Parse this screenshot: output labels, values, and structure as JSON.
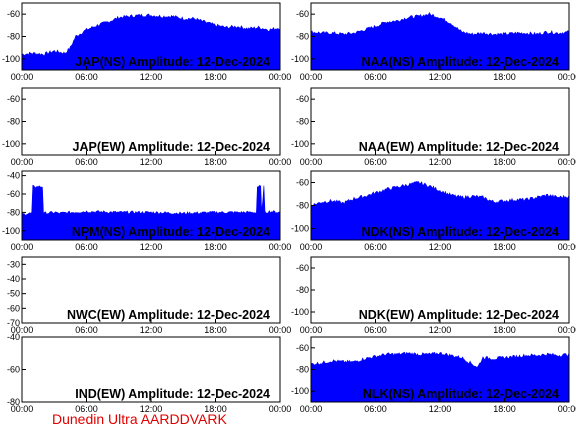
{
  "credit": "Dunedin Ultra AARDDVARK",
  "colors": {
    "fill": "#0000ff",
    "credit": "#e00000",
    "frame": "#000000"
  },
  "chart_data": [
    {
      "type": "area",
      "title": "JAP(NS) Amplitude: 12-Dec-2024",
      "x_tick_labels": [
        "00:00",
        "06:00",
        "12:00",
        "18:00",
        "00:00"
      ],
      "y_ticks": [
        -60,
        -80,
        -100
      ],
      "ylim": [
        -110,
        -50
      ],
      "x_hours": [
        0,
        1,
        2,
        3,
        4,
        4.5,
        5,
        6,
        7,
        8,
        9,
        10,
        11,
        12,
        13,
        14,
        15,
        16,
        17,
        18,
        19,
        20,
        21,
        22,
        23,
        24
      ],
      "y_values": [
        -96,
        -95,
        -96,
        -93,
        -95,
        -90,
        -80,
        -74,
        -70,
        -67,
        -63,
        -62,
        -61,
        -61,
        -62,
        -62,
        -64,
        -64,
        -67,
        -70,
        -72,
        -71,
        -73,
        -72,
        -74,
        -72
      ]
    },
    {
      "type": "area",
      "title": "NAA(NS) Amplitude: 12-Dec-2024",
      "x_tick_labels": [
        "00:00",
        "06:00",
        "12:00",
        "18:00",
        "00:00"
      ],
      "y_ticks": [
        -60,
        -80,
        -100
      ],
      "ylim": [
        -110,
        -50
      ],
      "x_hours": [
        0,
        1,
        2,
        3,
        4,
        5,
        6,
        7,
        8,
        9,
        10,
        11,
        12,
        13,
        14,
        15,
        16,
        17,
        18,
        19,
        20,
        21,
        22,
        23,
        24
      ],
      "y_values": [
        -76,
        -77,
        -77,
        -78,
        -77,
        -74,
        -71,
        -67,
        -66,
        -63,
        -62,
        -60,
        -63,
        -68,
        -76,
        -78,
        -77,
        -78,
        -78,
        -77,
        -77,
        -78,
        -76,
        -77,
        -76
      ]
    },
    {
      "type": "area",
      "title": "JAP(EW) Amplitude: 12-Dec-2024",
      "x_tick_labels": [
        "00:00",
        "06:00",
        "12:00",
        "18:00",
        "00:00"
      ],
      "y_ticks": [
        -60,
        -80,
        -100
      ],
      "ylim": [
        -110,
        -50
      ],
      "x_hours": [],
      "y_values": []
    },
    {
      "type": "area",
      "title": "NAA(EW) Amplitude: 12-Dec-2024",
      "x_tick_labels": [
        "00:00",
        "06:00",
        "12:00",
        "18:00",
        "00:00"
      ],
      "y_ticks": [
        -60,
        -80,
        -100
      ],
      "ylim": [
        -110,
        -50
      ],
      "x_hours": [],
      "y_values": []
    },
    {
      "type": "area",
      "title": "NPM(NS) Amplitude: 12-Dec-2024",
      "x_tick_labels": [
        "00:00",
        "06:00",
        "12:00",
        "18:00",
        "00:00"
      ],
      "y_ticks": [
        -40,
        -60,
        -80,
        -100
      ],
      "ylim": [
        -110,
        -35
      ],
      "x_hours": [
        0,
        0.9,
        1.0,
        1.9,
        2.0,
        3.2,
        3.3,
        6,
        9,
        12,
        15,
        18,
        21,
        21.8,
        21.9,
        22.2,
        22.3,
        22.5,
        22.6,
        23,
        24
      ],
      "y_values": [
        -82,
        -81,
        -52,
        -52,
        -81,
        -80,
        -81,
        -79,
        -80,
        -80,
        -81,
        -80,
        -80,
        -80,
        -52,
        -52,
        -80,
        -52,
        -80,
        -79,
        -80
      ]
    },
    {
      "type": "area",
      "title": "NDK(NS) Amplitude: 12-Dec-2024",
      "x_tick_labels": [
        "00:00",
        "06:00",
        "12:00",
        "18:00",
        "00:00"
      ],
      "y_ticks": [
        -60,
        -80,
        -100
      ],
      "ylim": [
        -110,
        -50
      ],
      "x_hours": [
        0,
        1,
        2,
        3,
        4,
        5,
        6,
        7,
        8,
        9,
        10,
        11,
        12,
        13,
        14,
        15,
        16,
        17,
        18,
        19,
        20,
        21,
        22,
        23,
        24
      ],
      "y_values": [
        -80,
        -77,
        -76,
        -78,
        -74,
        -72,
        -69,
        -66,
        -64,
        -62,
        -60,
        -63,
        -67,
        -71,
        -73,
        -72,
        -73,
        -77,
        -76,
        -75,
        -75,
        -73,
        -71,
        -73,
        -72
      ]
    },
    {
      "type": "area",
      "title": "NWC(EW) Amplitude: 12-Dec-2024",
      "x_tick_labels": [
        "00:00",
        "06:00",
        "12:00",
        "18:00",
        "00:00"
      ],
      "y_ticks": [
        -30,
        -40,
        -50,
        -60,
        -70
      ],
      "ylim": [
        -70,
        -25
      ],
      "x_hours": [],
      "y_values": []
    },
    {
      "type": "area",
      "title": "NDK(EW) Amplitude: 12-Dec-2024",
      "x_tick_labels": [
        "00:00",
        "06:00",
        "12:00",
        "18:00",
        "00:00"
      ],
      "y_ticks": [
        -60,
        -80,
        -100
      ],
      "ylim": [
        -110,
        -50
      ],
      "x_hours": [],
      "y_values": []
    },
    {
      "type": "area",
      "title": "IND(EW) Amplitude: 12-Dec-2024",
      "x_tick_labels": [
        "00:00",
        "06:00",
        "12:00",
        "18:00",
        "00:00"
      ],
      "y_ticks": [
        -40,
        -60,
        -80
      ],
      "ylim": [
        -80,
        -40
      ],
      "x_hours": [],
      "y_values": []
    },
    {
      "type": "area",
      "title": "NLK(NS) Amplitude: 12-Dec-2024",
      "x_tick_labels": [
        "00:00",
        "06:00",
        "12:00",
        "18:00",
        "00:00"
      ],
      "y_ticks": [
        -60,
        -80,
        -100
      ],
      "ylim": [
        -110,
        -50
      ],
      "x_hours": [
        0,
        1,
        2,
        3,
        4,
        5,
        6,
        7,
        8,
        9,
        10,
        11,
        12,
        13,
        14,
        15,
        15.5,
        16,
        17,
        18,
        19,
        20,
        21,
        22,
        23,
        24
      ],
      "y_values": [
        -75,
        -74,
        -72,
        -73,
        -73,
        -70,
        -68,
        -66,
        -66,
        -65,
        -66,
        -66,
        -65,
        -67,
        -69,
        -75,
        -78,
        -69,
        -70,
        -69,
        -68,
        -67,
        -67,
        -66,
        -67,
        -66
      ]
    }
  ]
}
